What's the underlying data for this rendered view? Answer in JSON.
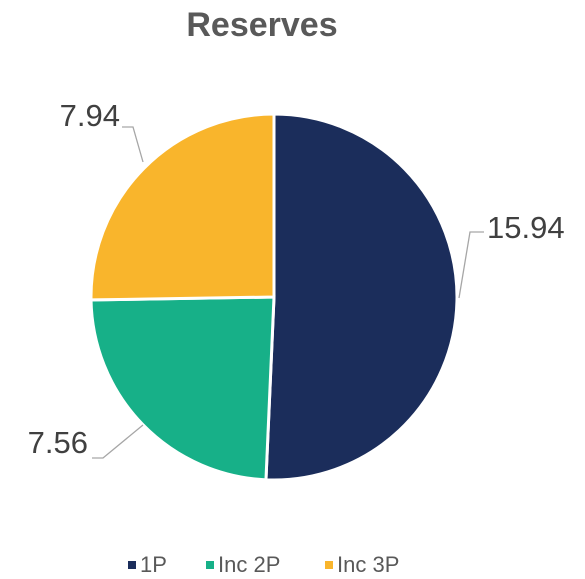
{
  "chart_data": {
    "type": "pie",
    "title": "Reserves",
    "categories": [
      "1P",
      "Inc 2P",
      "Inc 3P"
    ],
    "values": [
      15.94,
      7.56,
      7.94
    ],
    "colors": [
      "#1b2d5b",
      "#17b088",
      "#f9b52c"
    ],
    "legend": "bottom"
  }
}
